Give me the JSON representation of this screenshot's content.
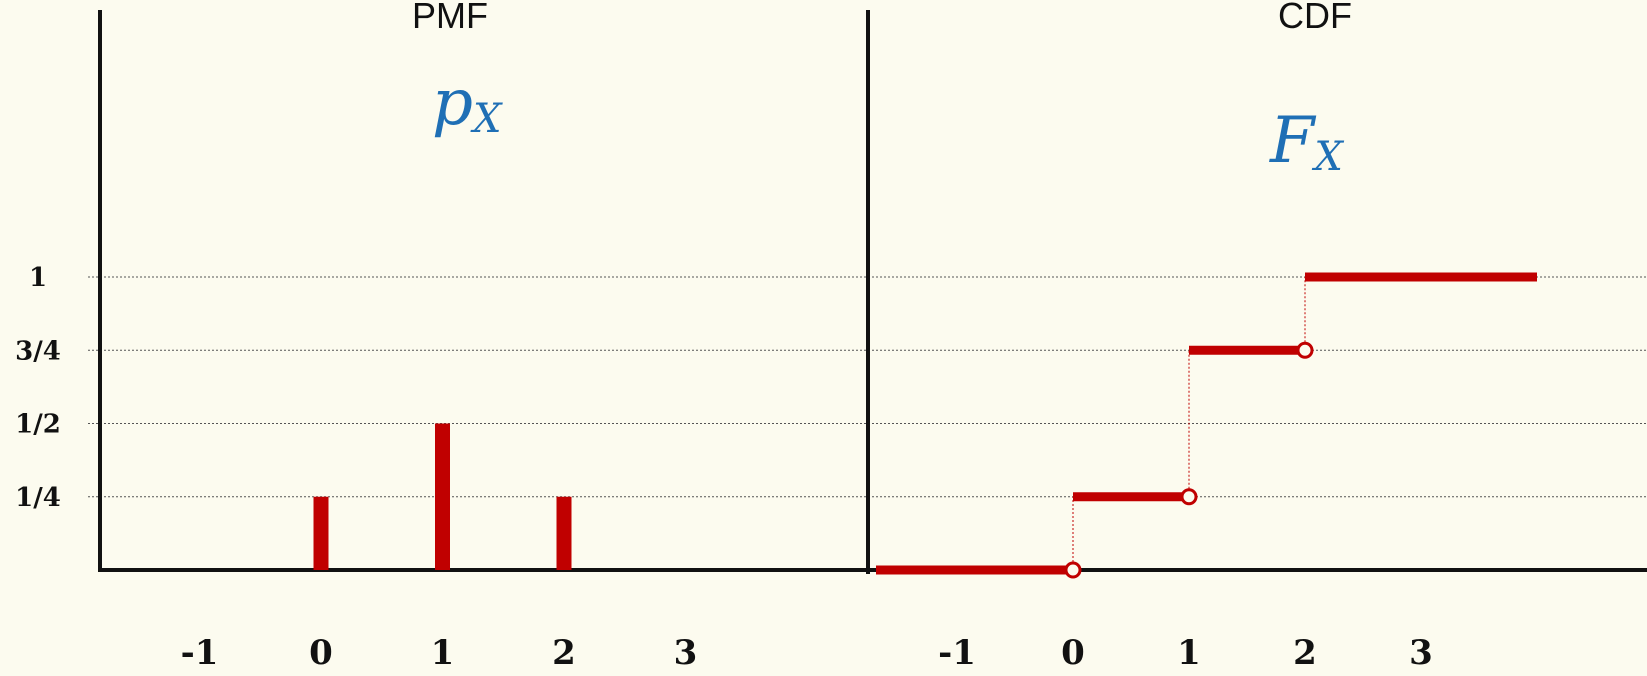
{
  "colors": {
    "background": "#fcfbef",
    "mark": "#c00000",
    "symbol": "#1f6fb5",
    "axis": "#111111",
    "gridline": "#555555"
  },
  "y_tick_labels": [
    "1/4",
    "1/2",
    "3/4",
    "1"
  ],
  "chart_data": [
    {
      "type": "bar",
      "title": "PMF",
      "symbol": {
        "main": "p",
        "subscript": "X"
      },
      "x_ticks": [
        "-1",
        "0",
        "1",
        "2",
        "3"
      ],
      "x": [
        0,
        1,
        2
      ],
      "values": [
        0.25,
        0.5,
        0.25
      ],
      "xlim": [
        -2,
        4
      ],
      "ylim": [
        0,
        1
      ],
      "grid": "horizontal dotted at 1/4, 1/2, 3/4, 1"
    },
    {
      "type": "line",
      "subtype": "step",
      "title": "CDF",
      "symbol": {
        "main": "F",
        "subscript": "X"
      },
      "x_ticks": [
        "-1",
        "0",
        "1",
        "2",
        "3"
      ],
      "steps": [
        {
          "x_start": -2,
          "x_end": 0,
          "y": 0
        },
        {
          "x_start": 0,
          "x_end": 1,
          "y": 0.25
        },
        {
          "x_start": 1,
          "x_end": 2,
          "y": 0.75
        },
        {
          "x_start": 2,
          "x_end": 4,
          "y": 1
        }
      ],
      "open_circles": [
        {
          "x": 0,
          "y": 0
        },
        {
          "x": 1,
          "y": 0.25
        },
        {
          "x": 2,
          "y": 0.75
        }
      ],
      "xlim": [
        -2,
        4
      ],
      "ylim": [
        0,
        1
      ],
      "grid": "horizontal dotted at 1/4, 1/2, 3/4, 1"
    }
  ]
}
